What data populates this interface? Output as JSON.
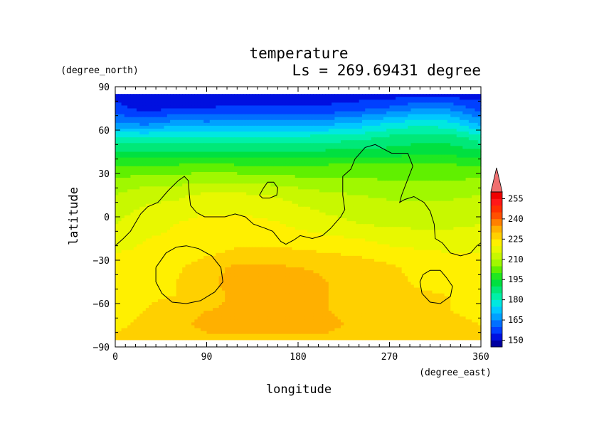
{
  "chart_data": {
    "type": "heatmap",
    "title": "temperature",
    "subtitle": "Ls = 269.69431 degree",
    "xlabel": "longitude",
    "ylabel": "latitude",
    "x_units": "(degree_east)",
    "y_units": "(degree_north)",
    "xlim": [
      0,
      360
    ],
    "ylim": [
      -90,
      90
    ],
    "x_ticks": [
      "0",
      "90",
      "180",
      "270",
      "360"
    ],
    "y_ticks": [
      "90",
      "60",
      "30",
      "0",
      "−30",
      "−60",
      "−90"
    ],
    "x_tick_values": [
      0,
      90,
      180,
      270,
      360
    ],
    "y_tick_values": [
      90,
      60,
      30,
      0,
      -30,
      -60,
      -90
    ],
    "colorbar": {
      "levels": [
        145,
        150,
        155,
        160,
        165,
        170,
        175,
        180,
        185,
        190,
        195,
        200,
        205,
        210,
        215,
        220,
        225,
        230,
        235,
        240,
        245,
        250,
        255,
        260
      ],
      "labels": [
        "150",
        "165",
        "180",
        "195",
        "210",
        "225",
        "240",
        "255"
      ],
      "label_values": [
        150,
        165,
        180,
        195,
        210,
        225,
        240,
        255
      ],
      "colors": [
        "#0000a0",
        "#0010e0",
        "#0040ff",
        "#0070ff",
        "#00a0ff",
        "#00c8ff",
        "#00e8e0",
        "#00f0a8",
        "#00e878",
        "#00e040",
        "#20e820",
        "#60f000",
        "#a0f800",
        "#c8f800",
        "#e8f800",
        "#fff000",
        "#ffd000",
        "#ffb000",
        "#ff8000",
        "#ff5000",
        "#ff3000",
        "#ff1818",
        "#f00000"
      ],
      "over_color": "#f07070"
    },
    "bands": [
      {
        "lat": 85,
        "temps": [
          152,
          152,
          152,
          152,
          152,
          152,
          152,
          152,
          152,
          152,
          152,
          152,
          152
        ]
      },
      {
        "lat": 75,
        "temps": [
          157,
          153,
          155,
          155,
          156,
          156,
          156,
          156,
          158,
          161,
          165,
          164,
          158
        ]
      },
      {
        "lat": 65,
        "temps": [
          165,
          163,
          167,
          166,
          167,
          166,
          167,
          168,
          171,
          175,
          178,
          176,
          168
        ]
      },
      {
        "lat": 55,
        "temps": [
          180,
          180,
          181,
          180,
          181,
          180,
          181,
          182,
          183,
          186,
          188,
          187,
          182
        ]
      },
      {
        "lat": 45,
        "temps": [
          190,
          190,
          190,
          190,
          190,
          190,
          190,
          191,
          191,
          192,
          193,
          193,
          191
        ]
      },
      {
        "lat": 35,
        "temps": [
          200,
          201,
          201,
          202,
          201,
          200,
          200,
          201,
          201,
          201,
          201,
          201,
          200
        ]
      },
      {
        "lat": 25,
        "temps": [
          206,
          208,
          208,
          209,
          209,
          208,
          207,
          206,
          206,
          205,
          205,
          205,
          206
        ]
      },
      {
        "lat": 15,
        "temps": [
          210,
          213,
          214,
          216,
          216,
          215,
          213,
          211,
          210,
          209,
          209,
          209,
          210
        ]
      },
      {
        "lat": 5,
        "temps": [
          213,
          216,
          217,
          219,
          219,
          218,
          216,
          214,
          213,
          212,
          212,
          212,
          213
        ]
      },
      {
        "lat": -5,
        "temps": [
          215,
          218,
          220,
          222,
          222,
          221,
          219,
          217,
          215,
          214,
          214,
          214,
          215
        ]
      },
      {
        "lat": -15,
        "temps": [
          217,
          220,
          221,
          222,
          223,
          223,
          222,
          221,
          220,
          218,
          217,
          217,
          217
        ]
      },
      {
        "lat": -25,
        "temps": [
          220,
          221,
          222,
          224,
          226,
          227,
          226,
          225,
          224,
          222,
          221,
          220,
          220
        ]
      },
      {
        "lat": -35,
        "temps": [
          221,
          222,
          224,
          228,
          231,
          231,
          230,
          229,
          228,
          226,
          223,
          222,
          221
        ]
      },
      {
        "lat": -45,
        "temps": [
          222,
          223,
          225,
          229,
          232,
          232,
          232,
          230,
          229,
          227,
          224,
          223,
          222
        ]
      },
      {
        "lat": -55,
        "temps": [
          222,
          224,
          225,
          228,
          231,
          232,
          232,
          230,
          229,
          227,
          226,
          225,
          223
        ]
      },
      {
        "lat": -65,
        "temps": [
          223,
          225,
          228,
          230,
          231,
          232,
          231,
          230,
          229,
          228,
          226,
          225,
          224
        ]
      },
      {
        "lat": -75,
        "temps": [
          224,
          226,
          229,
          231,
          232,
          232,
          232,
          231,
          229,
          228,
          227,
          226,
          225
        ]
      },
      {
        "lat": -85,
        "temps": [
          226,
          227,
          228,
          229,
          229,
          229,
          229,
          229,
          228,
          227,
          227,
          226,
          226
        ]
      }
    ],
    "lon_nodes": [
      0,
      30,
      60,
      90,
      120,
      150,
      180,
      210,
      240,
      270,
      300,
      330,
      360
    ],
    "topography_contours": [
      [
        [
          0,
          -20
        ],
        [
          8,
          -15
        ],
        [
          15,
          -10
        ],
        [
          25,
          2
        ],
        [
          32,
          7
        ],
        [
          42,
          10
        ],
        [
          52,
          18
        ],
        [
          62,
          25
        ],
        [
          68,
          28
        ],
        [
          72,
          25
        ],
        [
          73,
          15
        ],
        [
          74,
          8
        ],
        [
          80,
          3
        ],
        [
          88,
          0
        ],
        [
          98,
          0
        ],
        [
          108,
          0
        ],
        [
          118,
          2
        ],
        [
          128,
          0
        ],
        [
          136,
          -5
        ],
        [
          148,
          -8
        ],
        [
          155,
          -10
        ],
        [
          163,
          -17
        ],
        [
          168,
          -19
        ],
        [
          176,
          -16
        ],
        [
          182,
          -13
        ],
        [
          194,
          -15
        ],
        [
          204,
          -13
        ],
        [
          212,
          -8
        ],
        [
          222,
          0
        ],
        [
          226,
          5
        ],
        [
          224,
          15
        ],
        [
          224,
          28
        ],
        [
          232,
          33
        ],
        [
          236,
          40
        ],
        [
          246,
          48
        ],
        [
          256,
          50
        ],
        [
          264,
          47
        ],
        [
          272,
          44
        ],
        [
          288,
          44
        ],
        [
          293,
          35
        ],
        [
          288,
          26
        ],
        [
          282,
          15
        ],
        [
          280,
          10
        ],
        [
          285,
          12
        ],
        [
          294,
          14
        ],
        [
          304,
          10
        ],
        [
          310,
          4
        ],
        [
          314,
          -5
        ],
        [
          315,
          -15
        ],
        [
          322,
          -18
        ],
        [
          330,
          -25
        ],
        [
          340,
          -27
        ],
        [
          350,
          -25
        ],
        [
          356,
          -20
        ],
        [
          360,
          -18
        ]
      ],
      [
        [
          40,
          -35
        ],
        [
          50,
          -25
        ],
        [
          60,
          -21
        ],
        [
          70,
          -20
        ],
        [
          82,
          -22
        ],
        [
          95,
          -27
        ],
        [
          104,
          -35
        ],
        [
          106,
          -45
        ],
        [
          98,
          -52
        ],
        [
          84,
          -58
        ],
        [
          70,
          -60
        ],
        [
          56,
          -59
        ],
        [
          46,
          -53
        ],
        [
          40,
          -45
        ],
        [
          40,
          -35
        ]
      ],
      [
        [
          142,
          15
        ],
        [
          146,
          20
        ],
        [
          150,
          24
        ],
        [
          156,
          24
        ],
        [
          160,
          20
        ],
        [
          159,
          15
        ],
        [
          152,
          13
        ],
        [
          145,
          13
        ],
        [
          142,
          15
        ]
      ],
      [
        [
          303,
          -40
        ],
        [
          310,
          -37
        ],
        [
          320,
          -37
        ],
        [
          326,
          -42
        ],
        [
          332,
          -48
        ],
        [
          330,
          -55
        ],
        [
          320,
          -60
        ],
        [
          310,
          -59
        ],
        [
          302,
          -53
        ],
        [
          300,
          -45
        ],
        [
          303,
          -40
        ]
      ]
    ]
  }
}
